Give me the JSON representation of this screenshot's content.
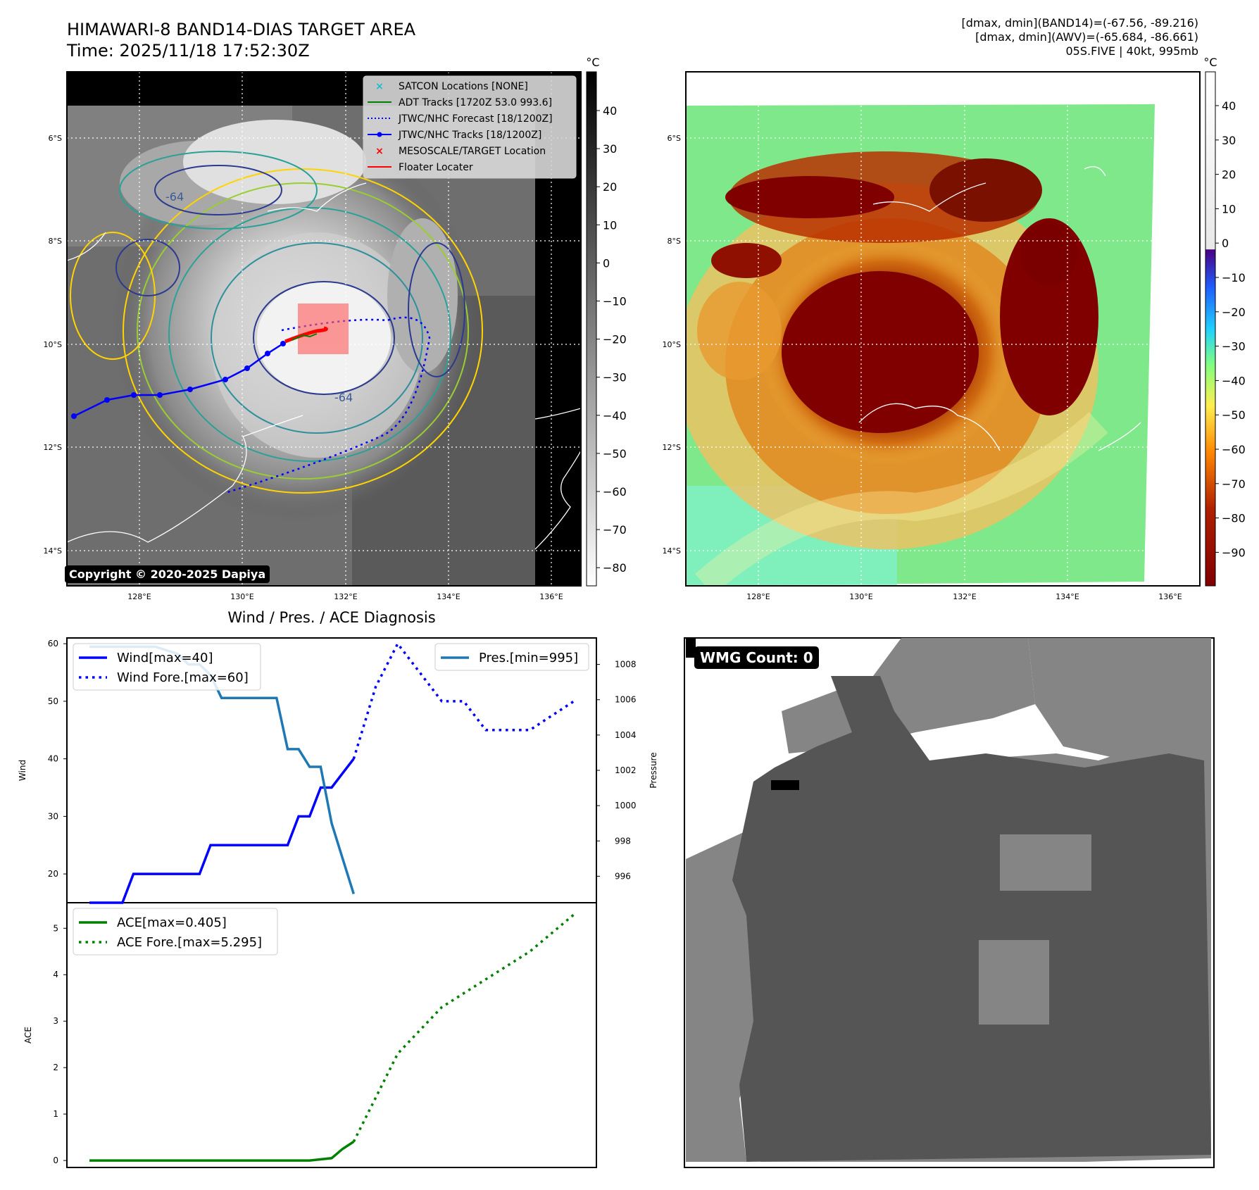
{
  "header": {
    "title": "HIMAWARI-8 BAND14-DIAS TARGET AREA",
    "time": "Time: 2025/11/18 17:52:30Z",
    "info_line1": "[dmax, dmin](BAND14)=(-67.56, -89.216)",
    "info_line2": "[dmax, dmin](AWV)=(-65.684, -86.661)",
    "info_line3": "05S.FIVE | 40kt, 995mb"
  },
  "map": {
    "lat_labels": [
      "6°S",
      "8°S",
      "10°S",
      "12°S",
      "14°S"
    ],
    "lon_labels": [
      "128°E",
      "130°E",
      "132°E",
      "134°E",
      "136°E"
    ],
    "contour_label": "-64",
    "copyright": "Copyright © 2020-2025 Dapiya",
    "legend": [
      {
        "label": "SATCON Locations [NONE]",
        "color": "#17becf",
        "symbol": "x"
      },
      {
        "label": "ADT Tracks [1720Z 53.0 993.6]",
        "color": "#008000",
        "symbol": "line"
      },
      {
        "label": "JTWC/NHC Forecast [18/1200Z]",
        "color": "#0000ff",
        "symbol": "dotted"
      },
      {
        "label": "JTWC/NHC Tracks [18/1200Z]",
        "color": "#0000ff",
        "symbol": "line-dot"
      },
      {
        "label": "MESOSCALE/TARGET Location",
        "color": "#ff0000",
        "symbol": "x"
      },
      {
        "label": "Floater Locater",
        "color": "#ff0000",
        "symbol": "line"
      }
    ],
    "colorbar_left": {
      "unit": "°C",
      "ticks": [
        "40",
        "30",
        "20",
        "10",
        "0",
        "−10",
        "−20",
        "−30",
        "−40",
        "−50",
        "−60",
        "−70",
        "−80"
      ]
    },
    "colorbar_right": {
      "unit": "°C",
      "ticks": [
        "40",
        "30",
        "20",
        "10",
        "0",
        "−10",
        "−20",
        "−30",
        "−40",
        "−50",
        "−60",
        "−70",
        "−80",
        "−90"
      ]
    }
  },
  "wmg": {
    "label": "WMG Count: 0"
  },
  "chart_data": [
    {
      "type": "line",
      "title": "Wind / Pres. / ACE Diagnosis",
      "ylabel": "Wind",
      "y2label": "Pressure",
      "ylim": [
        15,
        61
      ],
      "y2lim": [
        994.5,
        1009.5
      ],
      "yticks": [
        20,
        30,
        40,
        50,
        60
      ],
      "y2ticks": [
        996,
        998,
        1000,
        1002,
        1004,
        1006,
        1008
      ],
      "xlim": [
        0,
        44
      ],
      "series": [
        {
          "name": "Wind[max=40]",
          "color": "#0000ff",
          "style": "solid",
          "x": [
            0,
            3,
            4,
            10,
            11,
            18,
            19,
            20,
            21,
            22,
            23,
            24
          ],
          "y": [
            15,
            15,
            20,
            20,
            25,
            25,
            30,
            30,
            35,
            35,
            37.5,
            40
          ]
        },
        {
          "name": "Wind Fore.[max=60]",
          "color": "#0000ff",
          "style": "dotted",
          "x": [
            24,
            26,
            28,
            30,
            32,
            34,
            36,
            38,
            40,
            42,
            44
          ],
          "y": [
            40,
            52.5,
            60,
            55,
            50,
            50,
            45,
            45,
            45,
            47.5,
            50
          ]
        },
        {
          "name": "Pres.[min=995]",
          "color": "#1f77b4",
          "style": "solid",
          "axis": "right",
          "x": [
            0,
            6,
            8,
            9,
            10,
            11,
            12,
            13,
            14,
            15,
            16,
            17,
            18,
            19,
            20,
            21,
            22,
            23,
            24
          ],
          "y": [
            1009,
            1009,
            1008.6,
            1008,
            1008,
            1007.4,
            1006.1,
            1006.1,
            1006.1,
            1006.1,
            1006.1,
            1006.1,
            1003.2,
            1003.2,
            1002.2,
            1002.2,
            999,
            997,
            995
          ]
        }
      ]
    },
    {
      "type": "line",
      "ylabel": "ACE",
      "ylim": [
        -0.15,
        5.55
      ],
      "yticks": [
        0,
        1,
        2,
        3,
        4,
        5
      ],
      "xlim": [
        0,
        44
      ],
      "series": [
        {
          "name": "ACE[max=0.405]",
          "color": "#008000",
          "style": "solid",
          "x": [
            0,
            2,
            4,
            6,
            8,
            10,
            12,
            14,
            16,
            18,
            19,
            20,
            22,
            23,
            24
          ],
          "y": [
            0,
            0,
            0,
            0,
            0,
            0,
            0,
            0,
            0,
            0,
            0,
            0,
            0.05,
            0.25,
            0.405
          ]
        },
        {
          "name": "ACE Fore.[max=5.295]",
          "color": "#008000",
          "style": "dotted",
          "x": [
            24,
            28,
            32,
            36,
            40,
            44
          ],
          "y": [
            0.405,
            2.3,
            3.3,
            3.9,
            4.5,
            5.295
          ]
        }
      ]
    }
  ]
}
